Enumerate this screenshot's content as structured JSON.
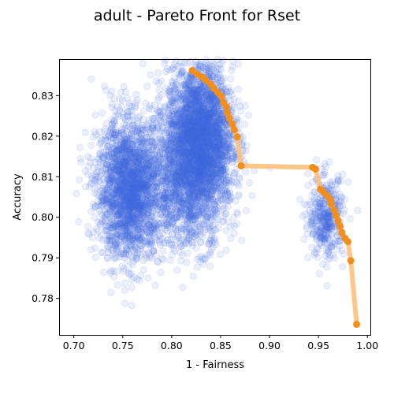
{
  "chart_data": {
    "type": "scatter",
    "title": "adult - Pareto Front for Rset",
    "xlabel": "1 - Fairness",
    "ylabel": "Accuracy",
    "xlim": [
      0.685,
      1.003
    ],
    "ylim": [
      0.771,
      0.839
    ],
    "x_ticks": [
      0.7,
      0.75,
      0.8,
      0.85,
      0.9,
      0.95,
      1.0
    ],
    "x_tick_labels": [
      "0.70",
      "0.75",
      "0.80",
      "0.85",
      "0.90",
      "0.95",
      "1.00"
    ],
    "y_ticks": [
      0.78,
      0.79,
      0.8,
      0.81,
      0.82,
      0.83
    ],
    "y_tick_labels": [
      "0.78",
      "0.79",
      "0.80",
      "0.81",
      "0.82",
      "0.83"
    ],
    "grid": false,
    "legend": false,
    "colors": {
      "scatter": "#4169e1",
      "pareto_points": "#f28e1c",
      "pareto_line": "#ffc07a"
    },
    "series": [
      {
        "type": "scatter",
        "clusters": [
          {
            "center": [
              0.758,
              0.807
            ],
            "spread": [
              0.017,
              0.0085
            ],
            "count": 2200
          },
          {
            "center": [
              0.828,
              0.82
            ],
            "spread": [
              0.017,
              0.0085
            ],
            "count": 3000
          },
          {
            "center": [
              0.818,
              0.806
            ],
            "spread": [
              0.02,
              0.007
            ],
            "count": 900
          },
          {
            "center": [
              0.958,
              0.8
            ],
            "spread": [
              0.009,
              0.005
            ],
            "count": 380
          }
        ]
      },
      {
        "type": "line",
        "x": [
          0.821,
          0.826,
          0.831,
          0.835,
          0.84,
          0.843,
          0.847,
          0.851,
          0.853,
          0.856,
          0.857,
          0.859,
          0.862,
          0.864,
          0.867,
          0.871,
          0.944,
          0.947,
          0.952,
          0.955,
          0.959,
          0.962,
          0.963,
          0.966,
          0.968,
          0.97,
          0.972,
          0.974,
          0.977,
          0.98,
          0.983,
          0.989
        ],
        "y": [
          0.8362,
          0.8353,
          0.8346,
          0.8338,
          0.8328,
          0.8318,
          0.8308,
          0.8298,
          0.8283,
          0.8272,
          0.8258,
          0.8244,
          0.823,
          0.8216,
          0.8198,
          0.8127,
          0.8123,
          0.8119,
          0.8069,
          0.8063,
          0.8053,
          0.8043,
          0.8033,
          0.8018,
          0.8005,
          0.7992,
          0.7978,
          0.7962,
          0.7948,
          0.794,
          0.7893,
          0.7736
        ]
      }
    ]
  }
}
